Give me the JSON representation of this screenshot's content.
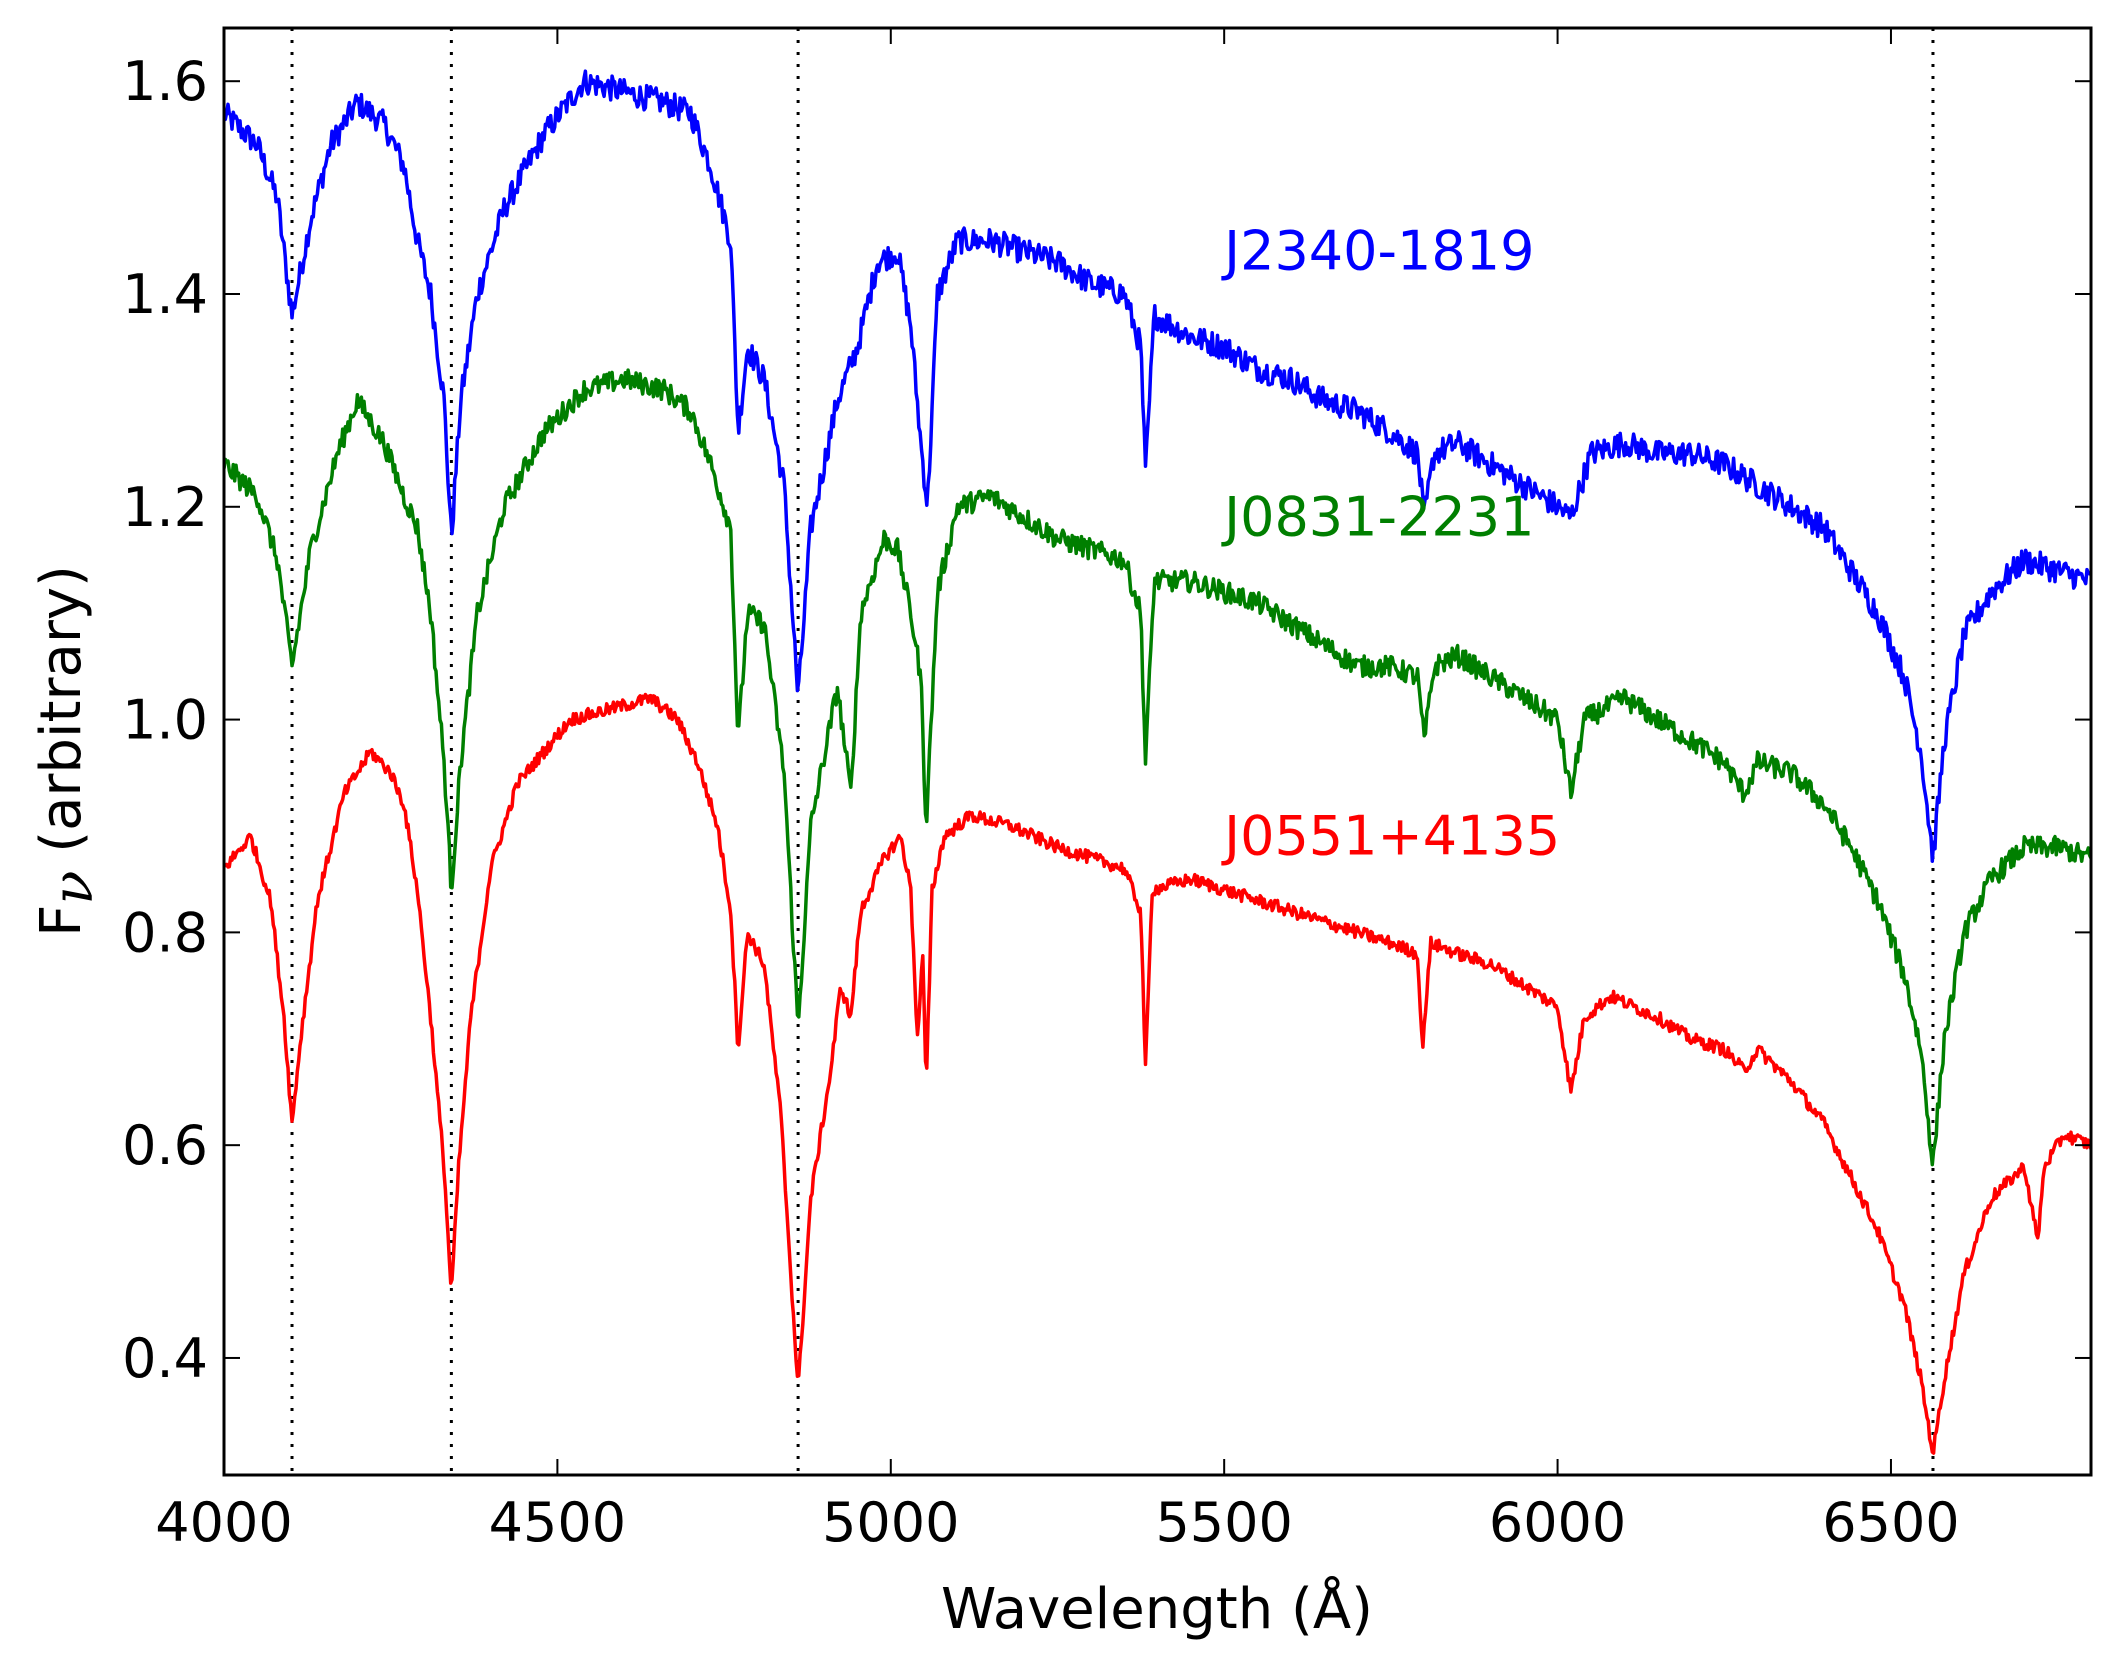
{
  "chart_data": {
    "type": "line",
    "xlabel": "Wavelength (Å)",
    "ylabel_main": "F",
    "ylabel_symbol": "ν",
    "ylabel_rest": " (arbitrary)",
    "xlim": [
      4000,
      6800
    ],
    "ylim": [
      0.29,
      1.65
    ],
    "xticks": [
      4000,
      4500,
      5000,
      5500,
      6000,
      6500
    ],
    "yticks": [
      0.4,
      0.6,
      0.8,
      1.0,
      1.2,
      1.4,
      1.6
    ],
    "xtick_labels": [
      "4000",
      "4500",
      "5000",
      "5500",
      "6000",
      "6500"
    ],
    "ytick_labels": [
      "0.4",
      "0.6",
      "0.8",
      "1.0",
      "1.2",
      "1.4",
      "1.6"
    ],
    "reference_lines": [
      4102,
      4341,
      4861,
      6563
    ],
    "grid": false,
    "series": [
      {
        "name": "J2340-1819",
        "color": "#0000ff",
        "label_position": [
          5500,
          1.44
        ],
        "points": [
          [
            4000,
            1.57
          ],
          [
            4050,
            1.54
          ],
          [
            4080,
            1.49
          ],
          [
            4102,
            1.38
          ],
          [
            4130,
            1.47
          ],
          [
            4160,
            1.54
          ],
          [
            4200,
            1.58
          ],
          [
            4240,
            1.56
          ],
          [
            4270,
            1.52
          ],
          [
            4290,
            1.45
          ],
          [
            4310,
            1.4
          ],
          [
            4330,
            1.3
          ],
          [
            4341,
            1.17
          ],
          [
            4355,
            1.3
          ],
          [
            4380,
            1.4
          ],
          [
            4420,
            1.48
          ],
          [
            4480,
            1.55
          ],
          [
            4540,
            1.6
          ],
          [
            4600,
            1.59
          ],
          [
            4660,
            1.58
          ],
          [
            4700,
            1.57
          ],
          [
            4730,
            1.52
          ],
          [
            4760,
            1.45
          ],
          [
            4771,
            1.27
          ],
          [
            4785,
            1.35
          ],
          [
            4810,
            1.32
          ],
          [
            4840,
            1.22
          ],
          [
            4861,
            1.02
          ],
          [
            4880,
            1.18
          ],
          [
            4920,
            1.3
          ],
          [
            4950,
            1.35
          ],
          [
            4980,
            1.43
          ],
          [
            5010,
            1.44
          ],
          [
            5030,
            1.37
          ],
          [
            5045,
            1.26
          ],
          [
            5055,
            1.2
          ],
          [
            5070,
            1.4
          ],
          [
            5100,
            1.45
          ],
          [
            5150,
            1.45
          ],
          [
            5200,
            1.44
          ],
          [
            5250,
            1.43
          ],
          [
            5300,
            1.41
          ],
          [
            5350,
            1.4
          ],
          [
            5375,
            1.35
          ],
          [
            5382,
            1.23
          ],
          [
            5395,
            1.38
          ],
          [
            5450,
            1.36
          ],
          [
            5500,
            1.35
          ],
          [
            5550,
            1.33
          ],
          [
            5600,
            1.32
          ],
          [
            5650,
            1.3
          ],
          [
            5700,
            1.29
          ],
          [
            5750,
            1.27
          ],
          [
            5790,
            1.25
          ],
          [
            5800,
            1.19
          ],
          [
            5815,
            1.25
          ],
          [
            5850,
            1.26
          ],
          [
            5900,
            1.24
          ],
          [
            5950,
            1.22
          ],
          [
            6000,
            1.2
          ],
          [
            6020,
            1.19
          ],
          [
            6050,
            1.25
          ],
          [
            6100,
            1.26
          ],
          [
            6150,
            1.25
          ],
          [
            6200,
            1.25
          ],
          [
            6250,
            1.24
          ],
          [
            6300,
            1.22
          ],
          [
            6350,
            1.2
          ],
          [
            6400,
            1.18
          ],
          [
            6440,
            1.14
          ],
          [
            6480,
            1.1
          ],
          [
            6520,
            1.04
          ],
          [
            6545,
            0.97
          ],
          [
            6563,
            0.87
          ],
          [
            6580,
            0.98
          ],
          [
            6610,
            1.08
          ],
          [
            6650,
            1.12
          ],
          [
            6700,
            1.15
          ],
          [
            6750,
            1.14
          ],
          [
            6800,
            1.13
          ]
        ]
      },
      {
        "name": "J0831-2231",
        "color": "#007f00",
        "label_position": [
          5500,
          1.19
        ],
        "points": [
          [
            4000,
            1.24
          ],
          [
            4050,
            1.21
          ],
          [
            4080,
            1.15
          ],
          [
            4102,
            1.05
          ],
          [
            4130,
            1.16
          ],
          [
            4170,
            1.25
          ],
          [
            4200,
            1.3
          ],
          [
            4240,
            1.26
          ],
          [
            4270,
            1.21
          ],
          [
            4290,
            1.18
          ],
          [
            4310,
            1.1
          ],
          [
            4330,
            0.96
          ],
          [
            4341,
            0.84
          ],
          [
            4355,
            0.96
          ],
          [
            4380,
            1.1
          ],
          [
            4420,
            1.2
          ],
          [
            4480,
            1.27
          ],
          [
            4540,
            1.31
          ],
          [
            4600,
            1.32
          ],
          [
            4660,
            1.31
          ],
          [
            4700,
            1.29
          ],
          [
            4730,
            1.24
          ],
          [
            4760,
            1.18
          ],
          [
            4771,
            0.98
          ],
          [
            4785,
            1.1
          ],
          [
            4810,
            1.09
          ],
          [
            4840,
            0.95
          ],
          [
            4861,
            0.71
          ],
          [
            4880,
            0.9
          ],
          [
            4920,
            1.03
          ],
          [
            4940,
            0.93
          ],
          [
            4955,
            1.1
          ],
          [
            4990,
            1.17
          ],
          [
            5010,
            1.16
          ],
          [
            5030,
            1.1
          ],
          [
            5045,
            1.04
          ],
          [
            5053,
            0.9
          ],
          [
            5070,
            1.12
          ],
          [
            5100,
            1.2
          ],
          [
            5150,
            1.21
          ],
          [
            5200,
            1.19
          ],
          [
            5250,
            1.17
          ],
          [
            5300,
            1.16
          ],
          [
            5350,
            1.15
          ],
          [
            5375,
            1.1
          ],
          [
            5382,
            0.96
          ],
          [
            5395,
            1.13
          ],
          [
            5450,
            1.13
          ],
          [
            5500,
            1.12
          ],
          [
            5550,
            1.11
          ],
          [
            5600,
            1.09
          ],
          [
            5650,
            1.07
          ],
          [
            5700,
            1.05
          ],
          [
            5750,
            1.05
          ],
          [
            5790,
            1.04
          ],
          [
            5800,
            0.98
          ],
          [
            5815,
            1.05
          ],
          [
            5850,
            1.06
          ],
          [
            5900,
            1.04
          ],
          [
            5950,
            1.02
          ],
          [
            6000,
            1.0
          ],
          [
            6020,
            0.93
          ],
          [
            6040,
            1.0
          ],
          [
            6100,
            1.02
          ],
          [
            6150,
            1.0
          ],
          [
            6200,
            0.98
          ],
          [
            6250,
            0.96
          ],
          [
            6280,
            0.93
          ],
          [
            6300,
            0.96
          ],
          [
            6350,
            0.95
          ],
          [
            6400,
            0.92
          ],
          [
            6440,
            0.88
          ],
          [
            6480,
            0.83
          ],
          [
            6520,
            0.76
          ],
          [
            6545,
            0.69
          ],
          [
            6563,
            0.58
          ],
          [
            6580,
            0.7
          ],
          [
            6610,
            0.8
          ],
          [
            6650,
            0.85
          ],
          [
            6700,
            0.88
          ],
          [
            6750,
            0.88
          ],
          [
            6800,
            0.87
          ]
        ]
      },
      {
        "name": "J0551+4135",
        "color": "#ff0000",
        "label_position": [
          5500,
          0.89
        ],
        "points": [
          [
            4000,
            0.86
          ],
          [
            4040,
            0.89
          ],
          [
            4070,
            0.83
          ],
          [
            4090,
            0.72
          ],
          [
            4102,
            0.62
          ],
          [
            4115,
            0.7
          ],
          [
            4140,
            0.83
          ],
          [
            4180,
            0.93
          ],
          [
            4220,
            0.97
          ],
          [
            4250,
            0.95
          ],
          [
            4270,
            0.92
          ],
          [
            4290,
            0.84
          ],
          [
            4310,
            0.72
          ],
          [
            4330,
            0.58
          ],
          [
            4341,
            0.46
          ],
          [
            4352,
            0.58
          ],
          [
            4370,
            0.72
          ],
          [
            4400,
            0.86
          ],
          [
            4440,
            0.94
          ],
          [
            4480,
            0.97
          ],
          [
            4520,
            1.0
          ],
          [
            4580,
            1.01
          ],
          [
            4640,
            1.02
          ],
          [
            4680,
            1.0
          ],
          [
            4710,
            0.96
          ],
          [
            4740,
            0.9
          ],
          [
            4760,
            0.82
          ],
          [
            4771,
            0.69
          ],
          [
            4785,
            0.8
          ],
          [
            4810,
            0.77
          ],
          [
            4835,
            0.63
          ],
          [
            4861,
            0.37
          ],
          [
            4880,
            0.55
          ],
          [
            4910,
            0.67
          ],
          [
            4925,
            0.75
          ],
          [
            4940,
            0.72
          ],
          [
            4955,
            0.82
          ],
          [
            4990,
            0.87
          ],
          [
            5015,
            0.89
          ],
          [
            5030,
            0.84
          ],
          [
            5040,
            0.7
          ],
          [
            5048,
            0.78
          ],
          [
            5053,
            0.65
          ],
          [
            5062,
            0.84
          ],
          [
            5080,
            0.89
          ],
          [
            5120,
            0.91
          ],
          [
            5180,
            0.9
          ],
          [
            5250,
            0.88
          ],
          [
            5300,
            0.87
          ],
          [
            5350,
            0.86
          ],
          [
            5375,
            0.82
          ],
          [
            5382,
            0.67
          ],
          [
            5392,
            0.84
          ],
          [
            5450,
            0.85
          ],
          [
            5500,
            0.84
          ],
          [
            5550,
            0.83
          ],
          [
            5600,
            0.82
          ],
          [
            5650,
            0.81
          ],
          [
            5700,
            0.8
          ],
          [
            5750,
            0.79
          ],
          [
            5790,
            0.78
          ],
          [
            5797,
            0.69
          ],
          [
            5810,
            0.79
          ],
          [
            5850,
            0.78
          ],
          [
            5900,
            0.77
          ],
          [
            5950,
            0.75
          ],
          [
            6000,
            0.73
          ],
          [
            6020,
            0.65
          ],
          [
            6040,
            0.72
          ],
          [
            6080,
            0.74
          ],
          [
            6150,
            0.72
          ],
          [
            6200,
            0.7
          ],
          [
            6250,
            0.69
          ],
          [
            6280,
            0.67
          ],
          [
            6300,
            0.69
          ],
          [
            6350,
            0.66
          ],
          [
            6400,
            0.62
          ],
          [
            6440,
            0.57
          ],
          [
            6480,
            0.52
          ],
          [
            6520,
            0.45
          ],
          [
            6545,
            0.38
          ],
          [
            6563,
            0.31
          ],
          [
            6580,
            0.38
          ],
          [
            6610,
            0.48
          ],
          [
            6650,
            0.55
          ],
          [
            6700,
            0.58
          ],
          [
            6720,
            0.51
          ],
          [
            6730,
            0.58
          ],
          [
            6760,
            0.61
          ],
          [
            6800,
            0.6
          ]
        ]
      }
    ]
  }
}
